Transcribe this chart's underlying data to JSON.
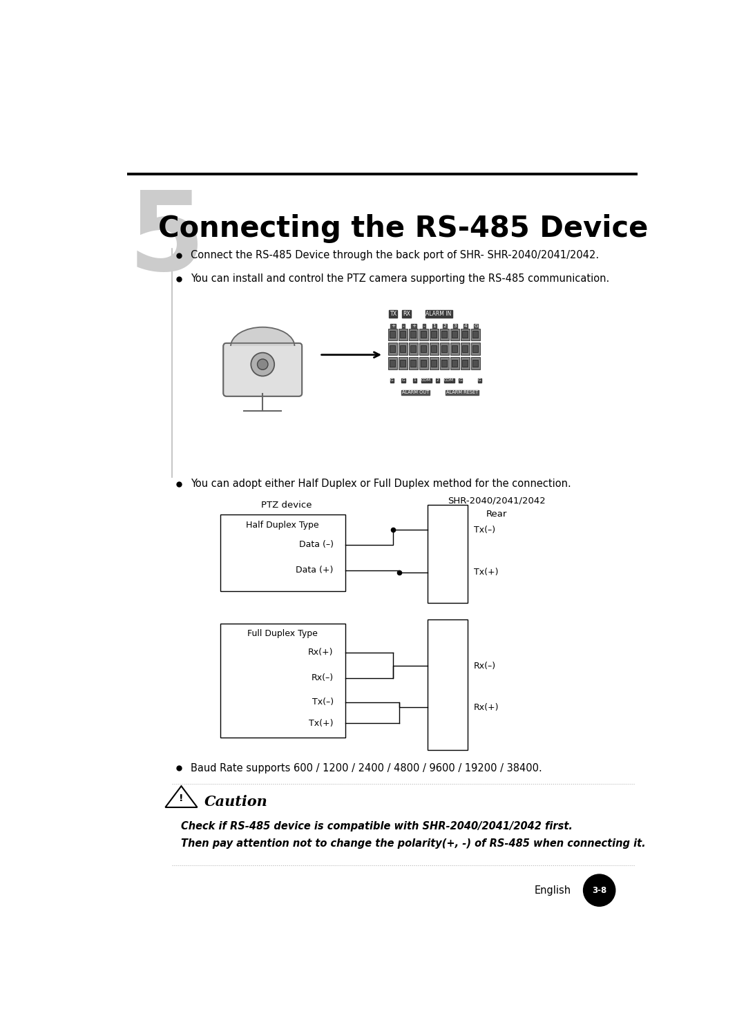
{
  "bg_color": "#ffffff",
  "page_width": 10.8,
  "page_height": 14.9,
  "chapter_num": "5",
  "chapter_num_color": "#cccccc",
  "chapter_num_fontsize": 115,
  "title_text": "Connecting the RS-485 Device",
  "title_fontsize": 30,
  "bullet1": "Connect the RS-485 Device through the back port of SHR- SHR-2040/2041/2042.",
  "bullet2": "You can install and control the PTZ camera supporting the RS-485 communication.",
  "bullet3": "You can adopt either Half Duplex or Full Duplex method for the connection.",
  "bullet4": "Baud Rate supports 600 / 1200 / 2400 / 4800 / 9600 / 19200 / 38400.",
  "bullet_fontsize": 10.5,
  "caution_line1": "Check if RS-485 device is compatible with SHR-2040/2041/2042 first.",
  "caution_line2": "Then pay attention not to change the polarity(+, -) of RS-485 when connecting it.",
  "footer_text": "English",
  "page_num": "3-8"
}
